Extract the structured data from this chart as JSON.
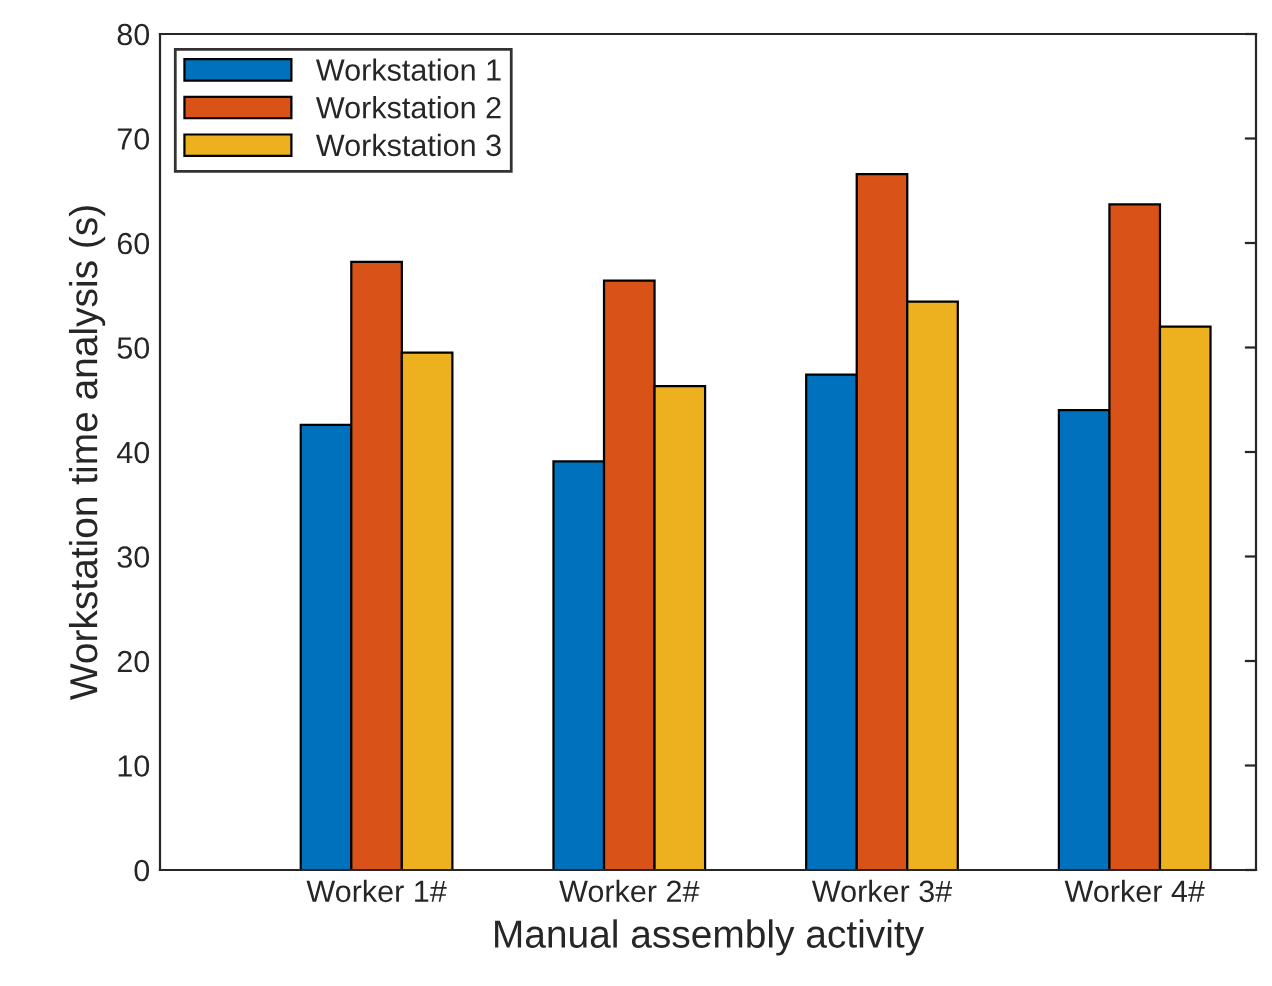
{
  "chart_data": {
    "type": "bar",
    "xlabel": "Manual assembly activity",
    "ylabel": "Workstation time analysis (s)",
    "categories": [
      "Worker 1#",
      "Worker 2#",
      "Worker 3#",
      "Worker 4#"
    ],
    "series": [
      {
        "name": "Workstation 1",
        "color": "#0072bd",
        "values": [
          42.6,
          39.1,
          47.4,
          44.0
        ]
      },
      {
        "name": "Workstation 2",
        "color": "#d95319",
        "values": [
          58.2,
          56.4,
          66.6,
          63.7
        ]
      },
      {
        "name": "Workstation 3",
        "color": "#edb120",
        "values": [
          49.5,
          46.3,
          54.4,
          52.0
        ]
      }
    ],
    "ylim": [
      0,
      80
    ],
    "yticks": [
      0,
      10,
      20,
      30,
      40,
      50,
      60,
      70,
      80
    ],
    "grid": false,
    "legend": "top left"
  }
}
